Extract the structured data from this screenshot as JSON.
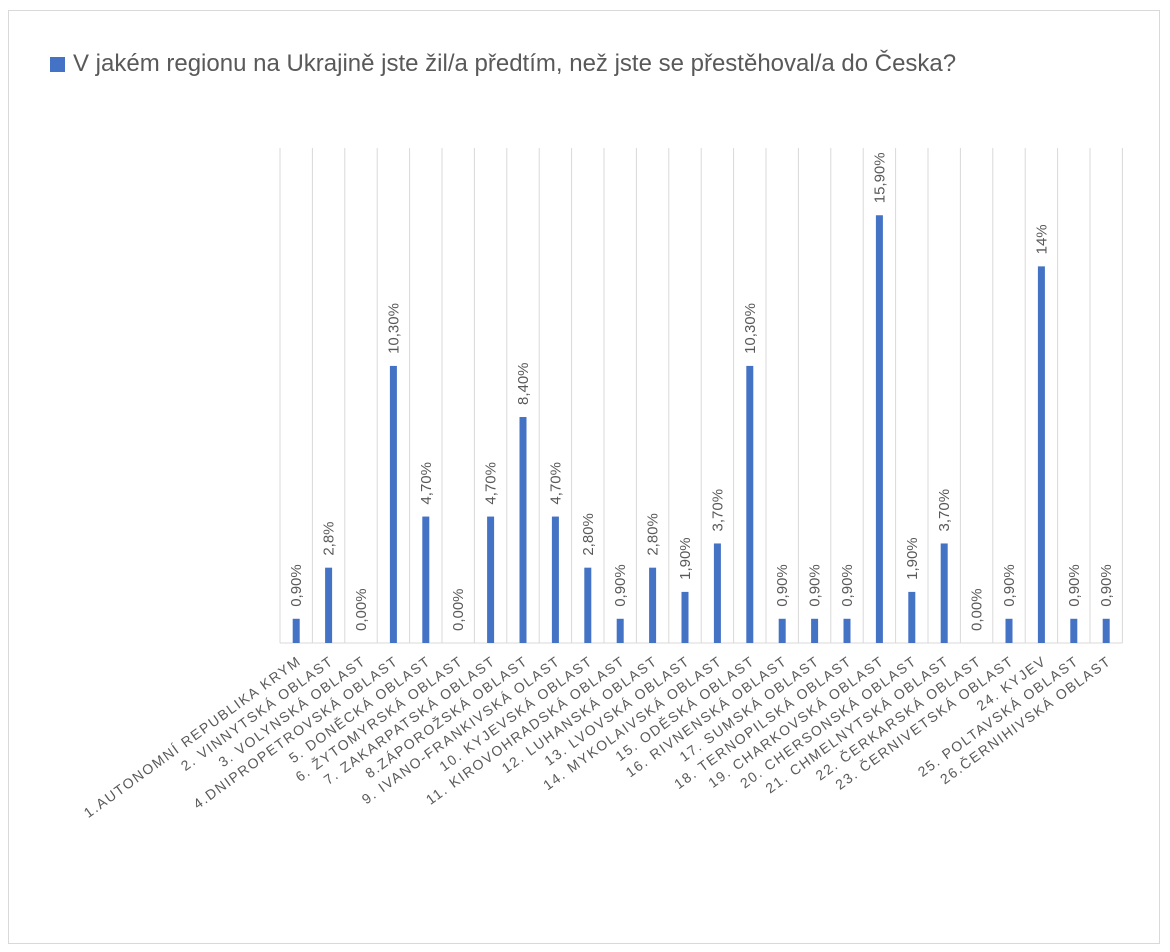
{
  "chart_data": {
    "type": "bar",
    "title": "",
    "xlabel": "",
    "ylabel": "",
    "ylim": [
      0,
      18.4
    ],
    "grid": "vertical",
    "legend": "top",
    "bar_color": "#4472c4",
    "categories": [
      "1.AUTONOMNÍ REPUBLIKA KRYM",
      "2. VINNYTSKÁ OBLAST",
      "3. VOLYNSKÁ OBLAST",
      "4.DNIPROPETROVSKÁ OBLAST",
      "5. DONĚCKÁ OBLAST",
      "6. ŽYTOMYRSKÁ OBLAST",
      "7. ZAKARPATSKÁ OBLAST",
      "8.ZÁPOROŽSKÁ OBLAST",
      "9. IVANO-FRANKIVSKÁ OLAST",
      "10. KYJEVSKÁ OBLAST",
      "11. KIROVOHRADSKÁ OBLAST",
      "12. LUHANSKÁ OBLAST",
      "13. LVOVSKÁ OBLAST",
      "14. MYKOLAIVSKÁ OBLAST",
      "15. ODĚSKÁ OBLAST",
      "16. RIVNENSKÁ OBLAST",
      "17. SUMSKÁ OBLAST",
      "18. TERNOPILSKÁ OBLAST",
      "19. CHARKOVSKÁ OBLAST",
      "20. CHERSONSKÁ OBLAST",
      "21. CHMELNYTSKÁ OBLAST",
      "22. ČERKARSKÁ OBLAST",
      "23. ČERNIVETSKÁ OBLAST",
      "24. KYJEV",
      "25. POLTAVSKÁ OBLAST",
      "26.ČERNIHIVSKÁ OBLAST"
    ],
    "series": [
      {
        "name": "V jakém regionu na Ukrajině jste žil/a předtím, než jste se přestěhoval/a do Česka?",
        "values": [
          0.9,
          2.8,
          0,
          10.3,
          4.7,
          0,
          4.7,
          8.4,
          4.7,
          2.8,
          0.9,
          2.8,
          1.9,
          3.7,
          10.3,
          0.9,
          0.9,
          0.9,
          15.9,
          1.9,
          3.7,
          0,
          0.9,
          14,
          0.9,
          0.9
        ],
        "labels": [
          "0,90%",
          "2,8%",
          "0,00%",
          "10,30%",
          "4,70%",
          "0,00%",
          "4,70%",
          "8,40%",
          "4,70%",
          "2,80%",
          "0,90%",
          "2,80%",
          "1,90%",
          "3,70%",
          "10,30%",
          "0,90%",
          "0,90%",
          "0,90%",
          "15,90%",
          "1,90%",
          "3,70%",
          "0,00%",
          "0,90%",
          "14%",
          "0,90%",
          "0,90%"
        ]
      }
    ]
  }
}
